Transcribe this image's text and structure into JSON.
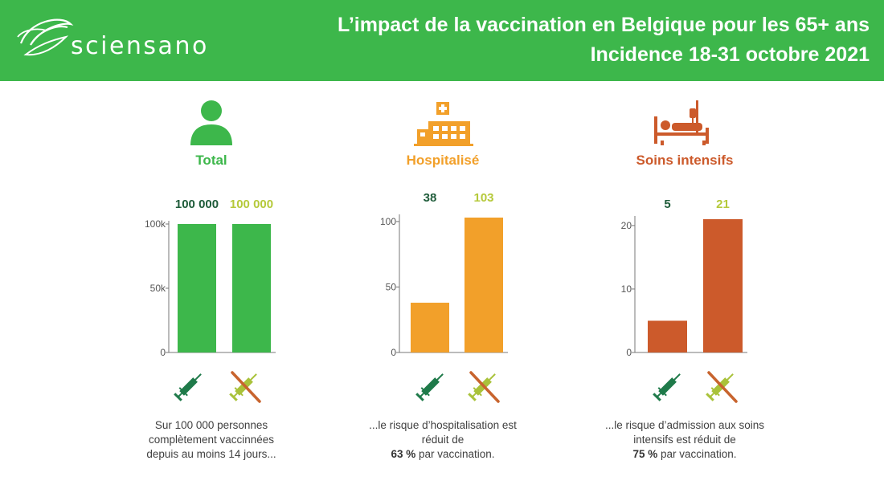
{
  "header": {
    "brand": "sciensano",
    "title_line1": "L’impact de la vaccination en Belgique pour les 65+ ans",
    "title_line2": "Incidence 18-31 octobre 2021",
    "background_color": "#3db74b"
  },
  "colors": {
    "vaccinated_label": "#1f5c3a",
    "total": "#3db74b",
    "hospitalised": "#f2a02a",
    "icu": "#cc5a2b",
    "unvaccinated_label": "#b5c93a",
    "syringe_vaccinated": "#1f7a4a",
    "syringe_unvaccinated": "#a9c23a",
    "cross": "#c8642e"
  },
  "panels": [
    {
      "title": "Total",
      "title_color": "#3db74b",
      "icon": "person-icon",
      "caption_lines": [
        "Sur 100 000 personnes",
        "complètement vaccinnées",
        "depuis au moins 14 jours..."
      ],
      "caption_bold": "",
      "caption_rest": ""
    },
    {
      "title": "Hospitalisé",
      "title_color": "#f2a02a",
      "icon": "hospital-icon",
      "caption_lines": [
        "...le risque d’hospitalisation est",
        "réduit de"
      ],
      "caption_bold": "63 %",
      "caption_rest": " par vaccination."
    },
    {
      "title": "Soins intensifs",
      "title_color": "#cc5a2b",
      "icon": "hospital-bed-icon",
      "caption_lines": [
        "...le risque d’admission aux soins",
        "intensifs est réduit de"
      ],
      "caption_bold": "75 %",
      "caption_rest": " par vaccination."
    }
  ],
  "chart_data": [
    {
      "type": "bar",
      "categories": [
        "vaccinated",
        "unvaccinated"
      ],
      "values": [
        100000,
        100000
      ],
      "value_labels": [
        "100 000",
        "100 000"
      ],
      "label_colors": [
        "#1f5c3a",
        "#b5c93a"
      ],
      "bar_color": "#3db74b",
      "ylim": [
        0,
        100000
      ],
      "yticks": [
        0,
        50000,
        100000
      ],
      "ytick_labels": [
        "0",
        "50k",
        "100k"
      ],
      "title": "Total",
      "xlabel": "",
      "ylabel": "",
      "grid": false
    },
    {
      "type": "bar",
      "categories": [
        "vaccinated",
        "unvaccinated"
      ],
      "values": [
        38,
        103
      ],
      "value_labels": [
        "38",
        "103"
      ],
      "label_colors": [
        "#1f5c3a",
        "#b5c93a"
      ],
      "bar_color": "#f2a02a",
      "ylim": [
        0,
        103
      ],
      "yticks": [
        0,
        50,
        100
      ],
      "ytick_labels": [
        "0",
        "50",
        "100"
      ],
      "title": "Hospitalisé",
      "xlabel": "",
      "ylabel": "",
      "grid": false
    },
    {
      "type": "bar",
      "categories": [
        "vaccinated",
        "unvaccinated"
      ],
      "values": [
        5,
        21
      ],
      "value_labels": [
        "5",
        "21"
      ],
      "label_colors": [
        "#1f5c3a",
        "#b5c93a"
      ],
      "bar_color": "#cc5a2b",
      "ylim": [
        0,
        21
      ],
      "yticks": [
        0,
        10,
        20
      ],
      "ytick_labels": [
        "0",
        "10",
        "20"
      ],
      "title": "Soins intensifs",
      "xlabel": "",
      "ylabel": "",
      "grid": false
    }
  ]
}
